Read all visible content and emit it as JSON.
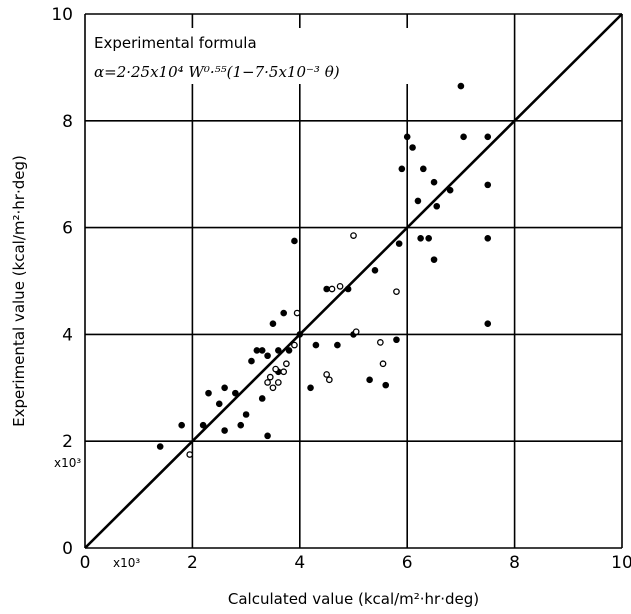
{
  "chart_data": {
    "type": "scatter",
    "xlabel": "Calculated value (kcal/m²·hr·deg)",
    "ylabel": "Experimental value (kcal/m²·hr·deg)",
    "x_multiplier": "x10³",
    "y_multiplier": "x10³",
    "xlim": [
      0,
      10
    ],
    "ylim": [
      0,
      10
    ],
    "x_ticks": [
      "0",
      "2",
      "4",
      "6",
      "8",
      "10"
    ],
    "y_ticks": [
      "0",
      "2",
      "4",
      "6",
      "8",
      "10"
    ],
    "grid": true,
    "annotation_title": "Experimental formula",
    "annotation_formula": "α=2·25x10⁴ W⁰·⁵⁵(1−7·5x10⁻³ θ)",
    "colors": {
      "marker": "#000000",
      "line": "#000000",
      "grid": "#000000"
    },
    "series": [
      {
        "marker": "filled",
        "points": [
          [
            1.4,
            1.9
          ],
          [
            1.8,
            2.3
          ],
          [
            2.2,
            2.3
          ],
          [
            2.3,
            2.9
          ],
          [
            2.5,
            2.7
          ],
          [
            2.6,
            3.0
          ],
          [
            2.6,
            2.2
          ],
          [
            2.8,
            2.9
          ],
          [
            2.9,
            2.3
          ],
          [
            3.0,
            2.5
          ],
          [
            3.1,
            3.5
          ],
          [
            3.2,
            3.7
          ],
          [
            3.3,
            2.8
          ],
          [
            3.3,
            3.7
          ],
          [
            3.4,
            2.1
          ],
          [
            3.4,
            3.6
          ],
          [
            3.5,
            4.2
          ],
          [
            3.6,
            3.7
          ],
          [
            3.6,
            3.3
          ],
          [
            3.7,
            4.4
          ],
          [
            3.8,
            3.7
          ],
          [
            3.9,
            5.75
          ],
          [
            4.0,
            4.0
          ],
          [
            4.2,
            3.0
          ],
          [
            4.3,
            3.8
          ],
          [
            4.5,
            4.85
          ],
          [
            4.7,
            3.8
          ],
          [
            4.9,
            4.85
          ],
          [
            5.0,
            4.0
          ],
          [
            5.3,
            3.15
          ],
          [
            5.4,
            5.2
          ],
          [
            5.6,
            3.05
          ],
          [
            5.8,
            3.9
          ],
          [
            5.85,
            5.7
          ],
          [
            5.9,
            7.1
          ],
          [
            6.0,
            7.7
          ],
          [
            6.1,
            7.5
          ],
          [
            6.2,
            6.5
          ],
          [
            6.3,
            7.1
          ],
          [
            6.25,
            5.8
          ],
          [
            6.4,
            5.8
          ],
          [
            6.5,
            5.4
          ],
          [
            6.55,
            6.4
          ],
          [
            6.5,
            6.85
          ],
          [
            6.8,
            6.7
          ],
          [
            7.0,
            8.65
          ],
          [
            7.05,
            7.7
          ],
          [
            7.5,
            7.7
          ],
          [
            7.5,
            6.8
          ],
          [
            7.5,
            5.8
          ],
          [
            7.5,
            4.2
          ]
        ]
      },
      {
        "marker": "open",
        "points": [
          [
            1.95,
            1.75
          ],
          [
            3.4,
            3.1
          ],
          [
            3.45,
            3.2
          ],
          [
            3.5,
            3.0
          ],
          [
            3.55,
            3.35
          ],
          [
            3.6,
            3.1
          ],
          [
            3.7,
            3.3
          ],
          [
            3.75,
            3.45
          ],
          [
            3.9,
            3.8
          ],
          [
            3.95,
            4.4
          ],
          [
            4.5,
            3.25
          ],
          [
            4.55,
            3.15
          ],
          [
            4.6,
            4.85
          ],
          [
            4.75,
            4.9
          ],
          [
            5.0,
            5.85
          ],
          [
            5.05,
            4.05
          ],
          [
            5.5,
            3.85
          ],
          [
            5.55,
            3.45
          ],
          [
            5.8,
            4.8
          ]
        ]
      }
    ],
    "reference_line": {
      "from": [
        0,
        0
      ],
      "to": [
        10,
        10
      ]
    }
  }
}
